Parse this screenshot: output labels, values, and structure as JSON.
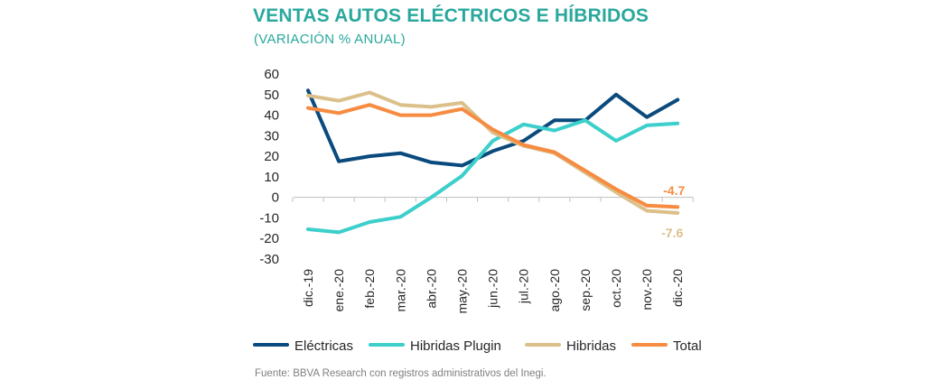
{
  "header": {
    "title": "VENTAS AUTOS ELÉCTRICOS E HÍBRIDOS",
    "subtitle": "(VARIACIÓN  % ANUAL)"
  },
  "footer": {
    "source": "Fuente: BBVA Research con registros administrativos del Inegi."
  },
  "colors": {
    "title": "#2aa89d",
    "axis_text": "#262626",
    "axis_line": "#bfbfbf"
  },
  "chart_data": {
    "type": "line",
    "title": "VENTAS AUTOS ELÉCTRICOS E HÍBRIDOS",
    "subtitle": "(VARIACIÓN  % ANUAL)",
    "xlabel": "",
    "ylabel": "",
    "ylim": [
      -30,
      60
    ],
    "yticks": [
      60,
      50,
      40,
      30,
      20,
      10,
      0,
      -10,
      -20,
      -30
    ],
    "grid": false,
    "legend_position": "bottom",
    "categories": [
      "dic.-19",
      "ene.-20",
      "feb.-20",
      "mar.-20",
      "abr.-20",
      "may.-20",
      "jun.-20",
      "jul.-20",
      "ago.-20",
      "sep.-20",
      "oct.-20",
      "nov.-20",
      "dic.-20"
    ],
    "series": [
      {
        "name": "Eléctricas",
        "color": "#0a4a7d",
        "values": [
          52,
          17.5,
          20,
          21.5,
          17,
          15.5,
          22.5,
          27.5,
          37.5,
          37.5,
          50,
          39,
          47.5
        ]
      },
      {
        "name": "Híbridas Plugin",
        "color": "#3ccfcb",
        "values": [
          -15.5,
          -17,
          -12,
          -9.5,
          0,
          10.5,
          27.5,
          35.5,
          32.5,
          37.5,
          27.5,
          35,
          36
        ]
      },
      {
        "name": "Híbridas",
        "color": "#dcc08a",
        "values": [
          49.5,
          47,
          51,
          45,
          44,
          46,
          31.5,
          25,
          21.5,
          12,
          2.5,
          -6.5,
          -7.6
        ]
      },
      {
        "name": "Total",
        "color": "#f68b41",
        "values": [
          43.5,
          41,
          45,
          40,
          40,
          43,
          33,
          25.5,
          22,
          13,
          4,
          -4,
          -4.7
        ]
      }
    ],
    "legend_labels": [
      "Eléctricas",
      "Hibridas Plugin",
      "Hibridas",
      "Total"
    ],
    "annotations": [
      {
        "text": "-4.7",
        "series": "Total",
        "color": "#f68b41"
      },
      {
        "text": "-7.6",
        "series": "Híbridas",
        "color": "#dcc08a"
      }
    ]
  }
}
